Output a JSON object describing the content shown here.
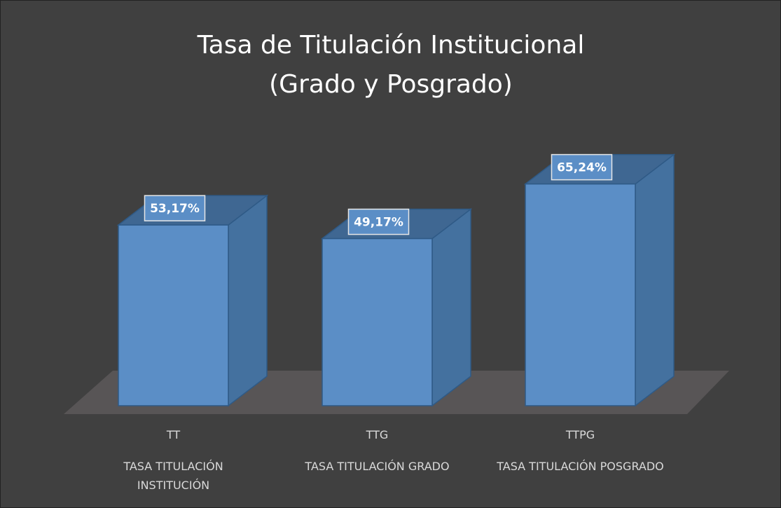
{
  "chart_data": {
    "type": "bar3d",
    "title": "Tasa de Titulación Institucional (Grado y Posgrado)",
    "categories": [
      "TT",
      "TTG",
      "TTPG"
    ],
    "category_descriptions": [
      "TASA TITULACIÓN INSTITUCIÓN",
      "TASA TITULACIÓN GRADO",
      "TASA TITULACIÓN POSGRADO"
    ],
    "values": [
      53.17,
      49.17,
      65.24
    ],
    "value_labels": [
      "53,17%",
      "49,17%",
      "65,24%"
    ],
    "color": "#5b8ec6"
  }
}
